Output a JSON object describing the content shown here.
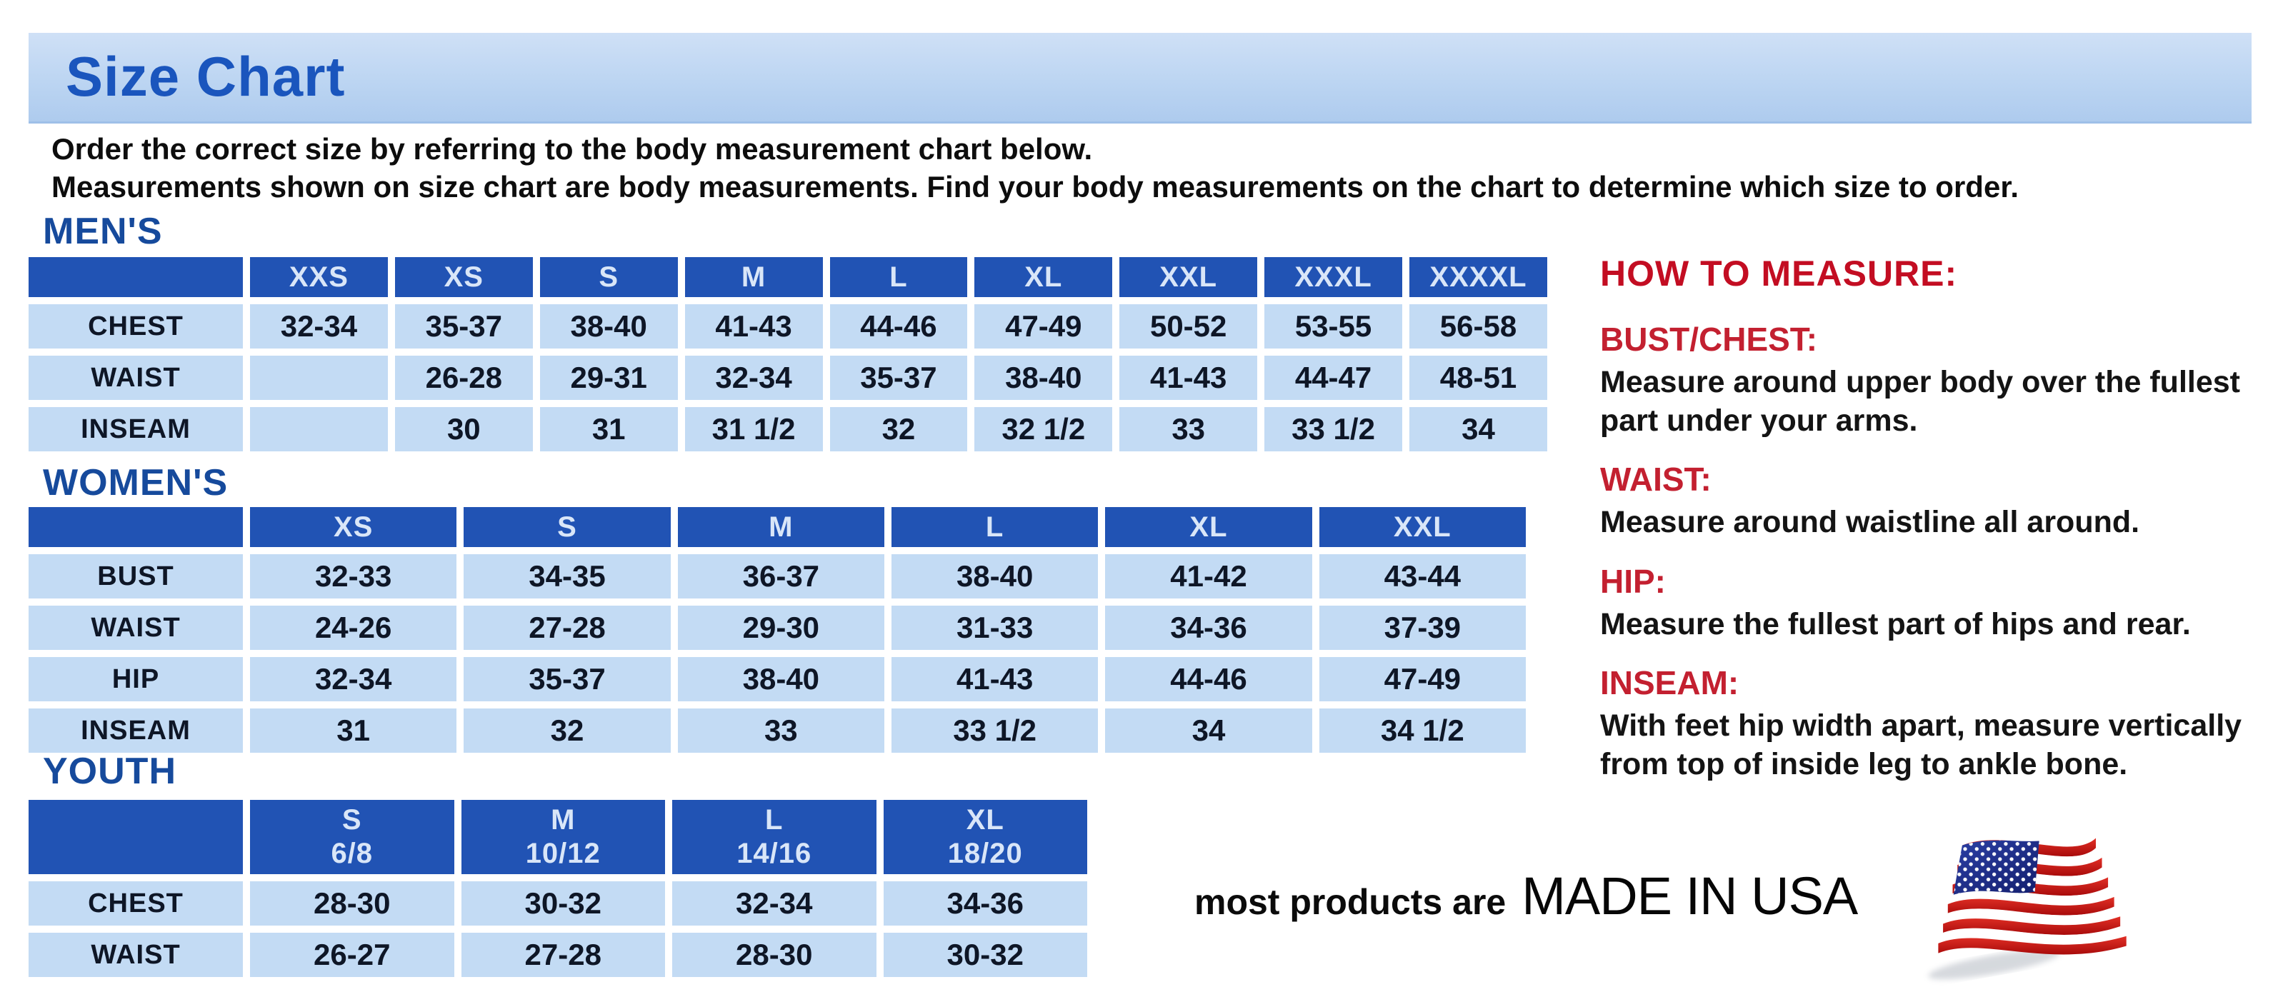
{
  "title": "Size Chart",
  "intro": {
    "line1": "Order the correct size by referring to the body measurement chart below.",
    "line2": "Measurements shown on size chart are body measurements.  Find your body measurements on the chart to determine which size to order."
  },
  "tables": {
    "mens": {
      "heading": "MEN'S",
      "columns": [
        "XXS",
        "XS",
        "S",
        "M",
        "L",
        "XL",
        "XXL",
        "XXXL",
        "XXXXL"
      ],
      "rows": [
        {
          "label": "CHEST",
          "values": [
            "32-34",
            "35-37",
            "38-40",
            "41-43",
            "44-46",
            "47-49",
            "50-52",
            "53-55",
            "56-58"
          ]
        },
        {
          "label": "WAIST",
          "values": [
            "",
            "26-28",
            "29-31",
            "32-34",
            "35-37",
            "38-40",
            "41-43",
            "44-47",
            "48-51"
          ]
        },
        {
          "label": "INSEAM",
          "values": [
            "",
            "30",
            "31",
            "31 1/2",
            "32",
            "32 1/2",
            "33",
            "33 1/2",
            "34"
          ]
        }
      ]
    },
    "womens": {
      "heading": "WOMEN'S",
      "columns": [
        "XS",
        "S",
        "M",
        "L",
        "XL",
        "XXL"
      ],
      "rows": [
        {
          "label": "BUST",
          "values": [
            "32-33",
            "34-35",
            "36-37",
            "38-40",
            "41-42",
            "43-44"
          ]
        },
        {
          "label": "WAIST",
          "values": [
            "24-26",
            "27-28",
            "29-30",
            "31-33",
            "34-36",
            "37-39"
          ]
        },
        {
          "label": "HIP",
          "values": [
            "32-34",
            "35-37",
            "38-40",
            "41-43",
            "44-46",
            "47-49"
          ]
        },
        {
          "label": "INSEAM",
          "values": [
            "31",
            "32",
            "33",
            "33 1/2",
            "34",
            "34 1/2"
          ]
        }
      ]
    },
    "youth": {
      "heading": "YOUTH",
      "columns": [
        {
          "label": "S",
          "sub": "6/8"
        },
        {
          "label": "M",
          "sub": "10/12"
        },
        {
          "label": "L",
          "sub": "14/16"
        },
        {
          "label": "XL",
          "sub": "18/20"
        }
      ],
      "rows": [
        {
          "label": "CHEST",
          "values": [
            "28-30",
            "30-32",
            "32-34",
            "34-36"
          ]
        },
        {
          "label": "WAIST",
          "values": [
            "26-27",
            "27-28",
            "28-30",
            "30-32"
          ]
        }
      ]
    }
  },
  "how_to_measure": {
    "heading": "HOW TO MEASURE:",
    "sections": [
      {
        "label": "BUST/CHEST:",
        "text": "Measure around upper body over the fullest part under your arms."
      },
      {
        "label": "WAIST:",
        "text": "Measure around waistline all around."
      },
      {
        "label": "HIP:",
        "text": "Measure the fullest part of hips and rear."
      },
      {
        "label": "INSEAM:",
        "text": "With feet hip width apart, measure vertically from top of inside leg to ankle bone."
      }
    ]
  },
  "made_in": {
    "prefix": "most products are",
    "emphasis": "MADE IN USA",
    "flag_icon": "usa-flag-icon"
  },
  "colors": {
    "banner_blue": "#bcd5f2",
    "title_blue": "#1a55bd",
    "section_heading_blue": "#164a9c",
    "table_header_blue": "#2153b4",
    "table_cell_blue": "#c3dbf4",
    "measure_red": "#c30d22",
    "flag_red": "#cc1420",
    "flag_navy": "#1d2f8f"
  }
}
